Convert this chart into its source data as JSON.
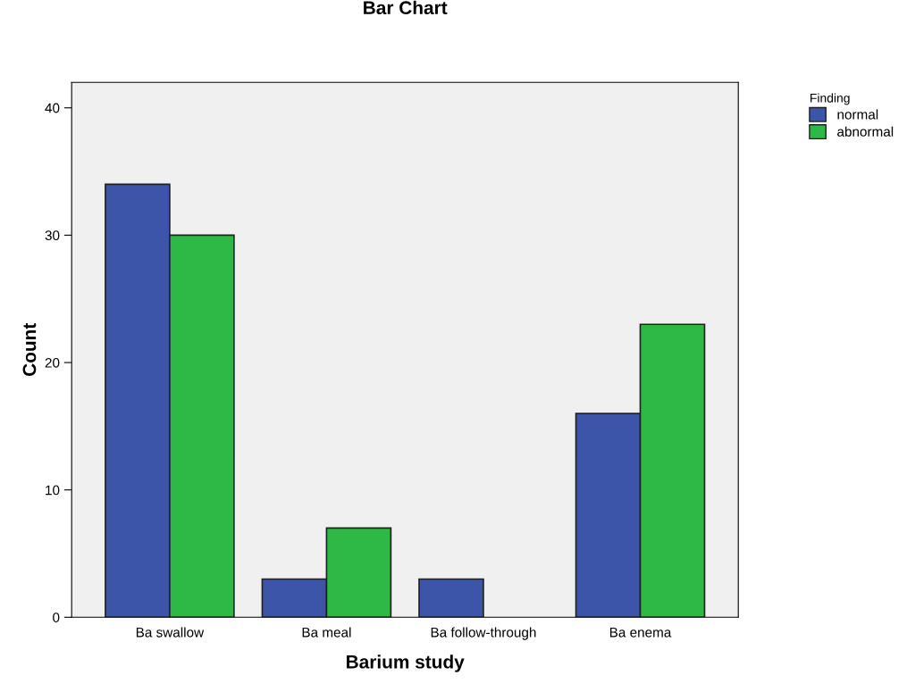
{
  "chart_data": {
    "type": "bar",
    "title": "Bar Chart",
    "xlabel": "Barium study",
    "ylabel": "Count",
    "legend_title": "Finding",
    "categories": [
      "Ba swallow",
      "Ba meal",
      "Ba follow-through",
      "Ba enema"
    ],
    "series": [
      {
        "name": "normal",
        "color": "#3d55a8",
        "values": [
          34,
          3,
          3,
          16
        ]
      },
      {
        "name": "abnormal",
        "color": "#2eb845",
        "values": [
          30,
          7,
          null,
          23
        ]
      }
    ],
    "ylim": [
      0,
      42
    ],
    "yticks": [
      0,
      10,
      20,
      30,
      40
    ],
    "grid": false,
    "legend": "top right"
  }
}
